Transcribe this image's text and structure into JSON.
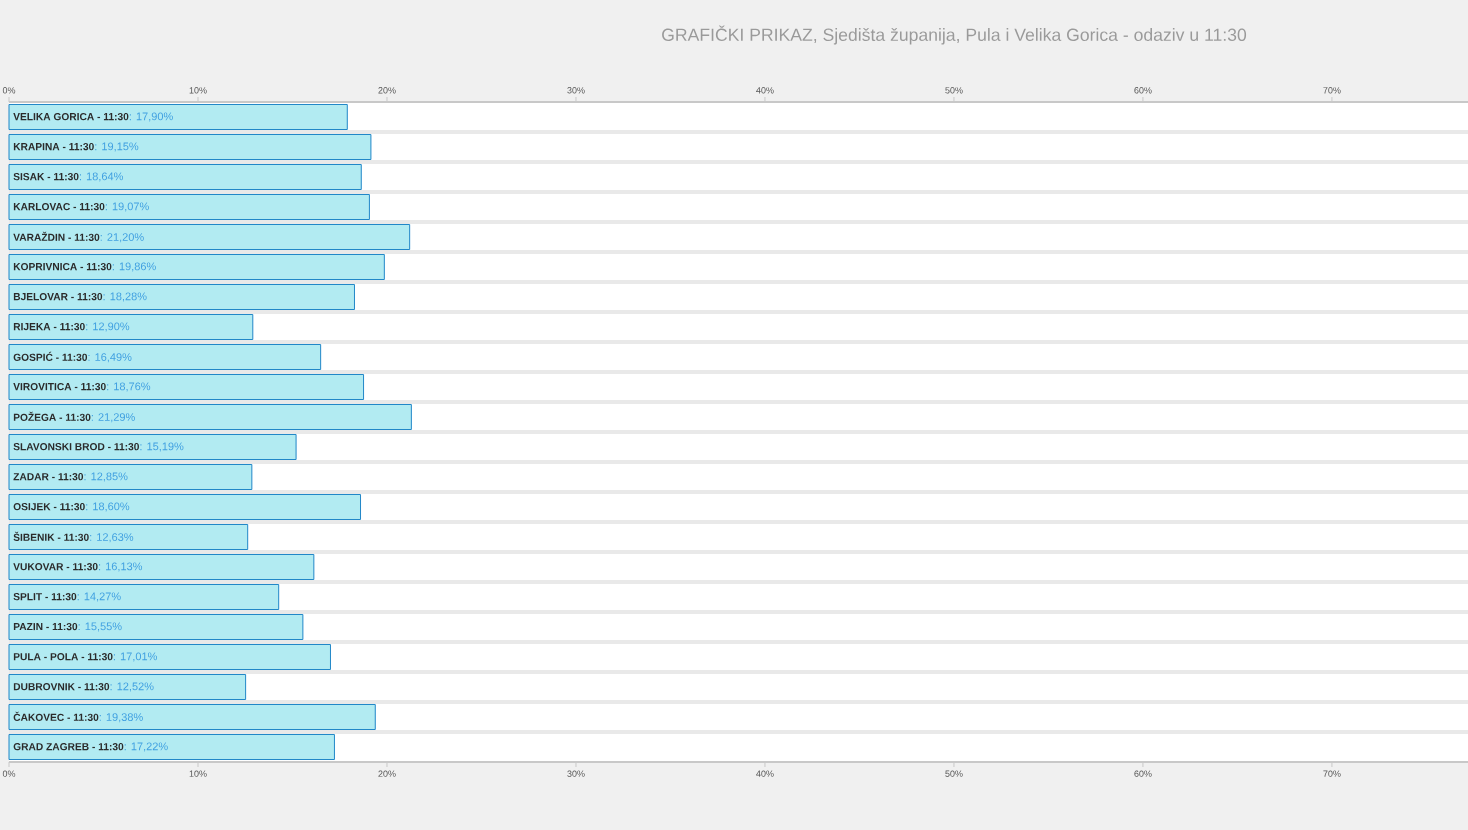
{
  "chart_data": {
    "type": "bar",
    "orientation": "horizontal",
    "title": "GRAFIČKI PRIKAZ, Sjedišta županija, Pula i Velika Gorica - odaziv u 11:30",
    "categories": [
      "VELIKA GORICA - 11:30",
      "KRAPINA - 11:30",
      "SISAK - 11:30",
      "KARLOVAC - 11:30",
      "VARAŽDIN - 11:30",
      "KOPRIVNICA - 11:30",
      "BJELOVAR - 11:30",
      "RIJEKA - 11:30",
      "GOSPIĆ - 11:30",
      "VIROVITICA - 11:30",
      "POŽEGA - 11:30",
      "SLAVONSKI BROD - 11:30",
      "ZADAR - 11:30",
      "OSIJEK - 11:30",
      "ŠIBENIK - 11:30",
      "VUKOVAR - 11:30",
      "SPLIT - 11:30",
      "PAZIN - 11:30",
      "PULA - POLA - 11:30",
      "DUBROVNIK - 11:30",
      "ČAKOVEC - 11:30",
      "GRAD ZAGREB - 11:30"
    ],
    "values": [
      17.9,
      19.15,
      18.64,
      19.07,
      21.2,
      19.86,
      18.28,
      12.9,
      16.49,
      18.76,
      21.29,
      15.19,
      12.85,
      18.6,
      12.63,
      16.13,
      14.27,
      15.55,
      17.01,
      12.52,
      19.38,
      17.22
    ],
    "value_labels": [
      ": 17,90%",
      ": 19,15%",
      ": 18,64%",
      ": 19,07%",
      ": 21,20%",
      ": 19,86%",
      ": 18,28%",
      ": 12,90%",
      ": 16,49%",
      ": 18,76%",
      ": 21,29%",
      ": 15,19%",
      ": 12,85%",
      ": 18,60%",
      ": 12,63%",
      ": 16,13%",
      ": 14,27%",
      ": 15,55%",
      ": 17,01%",
      ": 12,52%",
      ": 19,38%",
      ": 17,22%"
    ],
    "color": "#b2ebf2",
    "xlim": [
      0,
      77.2
    ],
    "xticks": [
      {
        "value": 0,
        "label": "0%"
      },
      {
        "value": 10,
        "label": "10%"
      },
      {
        "value": 20,
        "label": "20%"
      },
      {
        "value": 30,
        "label": "30%"
      },
      {
        "value": 40,
        "label": "40%"
      },
      {
        "value": 50,
        "label": "50%"
      },
      {
        "value": 60,
        "label": "60%"
      },
      {
        "value": 70,
        "label": "70%"
      }
    ],
    "x2lim": [
      0,
      77.2
    ],
    "x2ticks": [
      {
        "value": 0,
        "label": "0%"
      },
      {
        "value": 10,
        "label": "10%"
      },
      {
        "value": 20,
        "label": "20%"
      },
      {
        "value": 30,
        "label": "30%"
      },
      {
        "value": 40,
        "label": "40%"
      },
      {
        "value": 50,
        "label": "50%"
      },
      {
        "value": 60,
        "label": "60%"
      },
      {
        "value": 70,
        "label": "70%"
      }
    ],
    "grid": "y"
  }
}
